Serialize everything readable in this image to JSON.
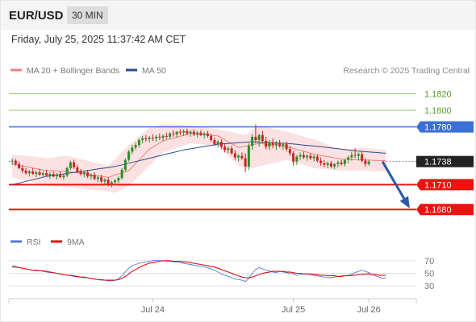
{
  "header": {
    "pair": "EUR/USD",
    "timeframe": "30 MIN"
  },
  "datetime": "Friday, July 25, 2025 11:37:42 AM CET",
  "legend": {
    "ma20": {
      "label": "MA 20 + Bollinger Bands",
      "color": "#f08080"
    },
    "ma50": {
      "label": "MA 50",
      "color": "#2a4d8f"
    },
    "copyright": "Research © 2025 Trading Central"
  },
  "rsi_legend": {
    "rsi": {
      "label": "RSI",
      "color": "#5577dd"
    },
    "ma9": {
      "label": "9MA",
      "color": "#dd1111"
    }
  },
  "colors": {
    "up": "#2e8b2e",
    "down": "#cc2222",
    "band_fill": "#fadcdc",
    "arrow": "#2a5aa8"
  },
  "chart_data": [
    {
      "type": "candlestick",
      "ylim": [
        1.165,
        1.184
      ],
      "x_count": 110,
      "xticks": [
        {
          "i": 41,
          "label": "Jul 24"
        },
        {
          "i": 82,
          "label": "Jul 25"
        },
        {
          "i": 104,
          "label": "Jul 26"
        }
      ],
      "candles": [
        [
          1.1738,
          1.1742,
          1.1734,
          1.1739
        ],
        [
          1.1739,
          1.1741,
          1.1733,
          1.1735
        ],
        [
          1.1735,
          1.1738,
          1.1729,
          1.173
        ],
        [
          1.173,
          1.1734,
          1.1724,
          1.1727
        ],
        [
          1.1727,
          1.173,
          1.1722,
          1.1724
        ],
        [
          1.1724,
          1.1728,
          1.172,
          1.1726
        ],
        [
          1.1726,
          1.173,
          1.1722,
          1.1723
        ],
        [
          1.1723,
          1.1727,
          1.1719,
          1.1725
        ],
        [
          1.1725,
          1.1729,
          1.1721,
          1.1722
        ],
        [
          1.1722,
          1.1726,
          1.1719,
          1.1724
        ],
        [
          1.1724,
          1.1728,
          1.172,
          1.1721
        ],
        [
          1.1721,
          1.1725,
          1.1717,
          1.1723
        ],
        [
          1.1723,
          1.1726,
          1.1719,
          1.172
        ],
        [
          1.172,
          1.1724,
          1.1716,
          1.1722
        ],
        [
          1.1722,
          1.1726,
          1.1718,
          1.1719
        ],
        [
          1.1719,
          1.1723,
          1.1716,
          1.1721
        ],
        [
          1.1721,
          1.1732,
          1.1719,
          1.173
        ],
        [
          1.173,
          1.1739,
          1.1728,
          1.1737
        ],
        [
          1.1737,
          1.174,
          1.1729,
          1.1731
        ],
        [
          1.1731,
          1.1734,
          1.1724,
          1.1726
        ],
        [
          1.1726,
          1.1729,
          1.1721,
          1.1723
        ],
        [
          1.1723,
          1.1727,
          1.1719,
          1.1725
        ],
        [
          1.1725,
          1.1728,
          1.1718,
          1.172
        ],
        [
          1.172,
          1.1724,
          1.1716,
          1.1722
        ],
        [
          1.1722,
          1.1725,
          1.1715,
          1.1717
        ],
        [
          1.1717,
          1.1721,
          1.1713,
          1.1719
        ],
        [
          1.1719,
          1.1722,
          1.1712,
          1.1714
        ],
        [
          1.1714,
          1.1718,
          1.171,
          1.1716
        ],
        [
          1.1716,
          1.1719,
          1.1708,
          1.1711
        ],
        [
          1.1711,
          1.1715,
          1.1707,
          1.1713
        ],
        [
          1.1713,
          1.1717,
          1.1709,
          1.1715
        ],
        [
          1.1715,
          1.172,
          1.1712,
          1.1718
        ],
        [
          1.1718,
          1.173,
          1.1716,
          1.1728
        ],
        [
          1.1728,
          1.1742,
          1.1726,
          1.174
        ],
        [
          1.174,
          1.1752,
          1.1738,
          1.175
        ],
        [
          1.175,
          1.1758,
          1.1747,
          1.1755
        ],
        [
          1.1755,
          1.1761,
          1.1752,
          1.1758
        ],
        [
          1.1758,
          1.1766,
          1.1755,
          1.1764
        ],
        [
          1.1764,
          1.1769,
          1.176,
          1.1766
        ],
        [
          1.1766,
          1.177,
          1.1762,
          1.1765
        ],
        [
          1.1765,
          1.1769,
          1.1761,
          1.1767
        ],
        [
          1.1767,
          1.1771,
          1.1763,
          1.1766
        ],
        [
          1.1766,
          1.177,
          1.1762,
          1.1768
        ],
        [
          1.1768,
          1.1772,
          1.1764,
          1.1767
        ],
        [
          1.1767,
          1.1771,
          1.1763,
          1.1769
        ],
        [
          1.1769,
          1.1773,
          1.1765,
          1.1768
        ],
        [
          1.1768,
          1.1774,
          1.1765,
          1.1772
        ],
        [
          1.1772,
          1.1776,
          1.1768,
          1.1771
        ],
        [
          1.1771,
          1.1775,
          1.1767,
          1.1774
        ],
        [
          1.1774,
          1.1777,
          1.177,
          1.1773
        ],
        [
          1.1773,
          1.1777,
          1.1769,
          1.1775
        ],
        [
          1.1775,
          1.1778,
          1.177,
          1.1772
        ],
        [
          1.1772,
          1.1776,
          1.1768,
          1.1774
        ],
        [
          1.1774,
          1.1777,
          1.1769,
          1.1771
        ],
        [
          1.1771,
          1.1775,
          1.1767,
          1.1773
        ],
        [
          1.1773,
          1.1776,
          1.1769,
          1.177
        ],
        [
          1.177,
          1.1774,
          1.1766,
          1.1772
        ],
        [
          1.1772,
          1.1775,
          1.1767,
          1.1769
        ],
        [
          1.1769,
          1.1772,
          1.1762,
          1.1764
        ],
        [
          1.1764,
          1.1767,
          1.1757,
          1.1759
        ],
        [
          1.1759,
          1.1764,
          1.1755,
          1.1762
        ],
        [
          1.1762,
          1.1765,
          1.1753,
          1.1756
        ],
        [
          1.1756,
          1.1759,
          1.1749,
          1.1752
        ],
        [
          1.1752,
          1.1756,
          1.1748,
          1.1754
        ],
        [
          1.1754,
          1.1757,
          1.1746,
          1.1748
        ],
        [
          1.1748,
          1.1752,
          1.174,
          1.1743
        ],
        [
          1.1743,
          1.1747,
          1.1738,
          1.1745
        ],
        [
          1.1745,
          1.1749,
          1.174,
          1.1742
        ],
        [
          1.1742,
          1.1748,
          1.1725,
          1.1732
        ],
        [
          1.1732,
          1.176,
          1.1728,
          1.1757
        ],
        [
          1.1757,
          1.1771,
          1.1752,
          1.1768
        ],
        [
          1.1768,
          1.1783,
          1.176,
          1.1764
        ],
        [
          1.1764,
          1.1772,
          1.1756,
          1.177
        ],
        [
          1.177,
          1.1775,
          1.176,
          1.1763
        ],
        [
          1.1763,
          1.1768,
          1.1753,
          1.1756
        ],
        [
          1.1756,
          1.1764,
          1.1752,
          1.1761
        ],
        [
          1.1761,
          1.1766,
          1.1754,
          1.1758
        ],
        [
          1.1758,
          1.1763,
          1.1752,
          1.176
        ],
        [
          1.176,
          1.1764,
          1.1755,
          1.1757
        ],
        [
          1.1757,
          1.1761,
          1.1752,
          1.1759
        ],
        [
          1.1759,
          1.1762,
          1.175,
          1.1753
        ],
        [
          1.1753,
          1.1757,
          1.1745,
          1.1748
        ],
        [
          1.1748,
          1.1751,
          1.1733,
          1.1738
        ],
        [
          1.1738,
          1.1746,
          1.1734,
          1.1744
        ],
        [
          1.1744,
          1.1749,
          1.174,
          1.1746
        ],
        [
          1.1746,
          1.175,
          1.1741,
          1.1743
        ],
        [
          1.1743,
          1.1747,
          1.1739,
          1.1745
        ],
        [
          1.1745,
          1.1748,
          1.174,
          1.1742
        ],
        [
          1.1742,
          1.1746,
          1.1738,
          1.1744
        ],
        [
          1.1744,
          1.1747,
          1.1737,
          1.1739
        ],
        [
          1.1739,
          1.1743,
          1.1733,
          1.1736
        ],
        [
          1.1736,
          1.174,
          1.1731,
          1.1734
        ],
        [
          1.1734,
          1.1738,
          1.173,
          1.1736
        ],
        [
          1.1736,
          1.1739,
          1.173,
          1.1732
        ],
        [
          1.1732,
          1.1736,
          1.1729,
          1.1735
        ],
        [
          1.1735,
          1.1739,
          1.1731,
          1.1737
        ],
        [
          1.1737,
          1.174,
          1.1733,
          1.1735
        ],
        [
          1.1735,
          1.1741,
          1.1732,
          1.174
        ],
        [
          1.174,
          1.1745,
          1.1736,
          1.1743
        ],
        [
          1.1743,
          1.175,
          1.1739,
          1.1746
        ],
        [
          1.1746,
          1.1754,
          1.1742,
          1.1745
        ],
        [
          1.1745,
          1.1749,
          1.1739,
          1.1747
        ],
        [
          1.1747,
          1.175,
          1.1737,
          1.1739
        ],
        [
          1.1739,
          1.1742,
          1.1732,
          1.1735
        ],
        [
          1.1735,
          1.174,
          1.1733,
          1.1738
        ]
      ],
      "bb_upper_anchors": [
        [
          0,
          1.1747
        ],
        [
          10,
          1.1742
        ],
        [
          16,
          1.1745
        ],
        [
          28,
          1.1733
        ],
        [
          34,
          1.1758
        ],
        [
          40,
          1.1779
        ],
        [
          44,
          1.1783
        ],
        [
          52,
          1.1782
        ],
        [
          60,
          1.1777
        ],
        [
          68,
          1.177
        ],
        [
          72,
          1.1782
        ],
        [
          80,
          1.1774
        ],
        [
          88,
          1.1765
        ],
        [
          96,
          1.1752
        ],
        [
          102,
          1.1755
        ],
        [
          109,
          1.1752
        ]
      ],
      "bb_lower_anchors": [
        [
          0,
          1.1719
        ],
        [
          10,
          1.1709
        ],
        [
          16,
          1.1707
        ],
        [
          28,
          1.1702
        ],
        [
          30,
          1.17
        ],
        [
          34,
          1.1708
        ],
        [
          40,
          1.1733
        ],
        [
          44,
          1.1749
        ],
        [
          52,
          1.176
        ],
        [
          60,
          1.1757
        ],
        [
          66,
          1.1733
        ],
        [
          70,
          1.173
        ],
        [
          80,
          1.174
        ],
        [
          88,
          1.173
        ],
        [
          96,
          1.1727
        ],
        [
          102,
          1.1727
        ],
        [
          109,
          1.1726
        ]
      ],
      "ma20_anchors": [
        [
          0,
          1.1735
        ],
        [
          10,
          1.1727
        ],
        [
          16,
          1.1726
        ],
        [
          28,
          1.1719
        ],
        [
          34,
          1.1727
        ],
        [
          40,
          1.1753
        ],
        [
          44,
          1.1763
        ],
        [
          52,
          1.1772
        ],
        [
          60,
          1.1769
        ],
        [
          66,
          1.1755
        ],
        [
          72,
          1.176
        ],
        [
          80,
          1.1756
        ],
        [
          88,
          1.1747
        ],
        [
          96,
          1.1741
        ],
        [
          102,
          1.174
        ],
        [
          109,
          1.1739
        ]
      ],
      "ma50_anchors": [
        [
          0,
          1.171
        ],
        [
          10,
          1.172
        ],
        [
          20,
          1.1726
        ],
        [
          30,
          1.1732
        ],
        [
          40,
          1.1742
        ],
        [
          50,
          1.1752
        ],
        [
          60,
          1.1759
        ],
        [
          70,
          1.1762
        ],
        [
          80,
          1.176
        ],
        [
          90,
          1.1756
        ],
        [
          100,
          1.1751
        ],
        [
          109,
          1.1748
        ]
      ],
      "levels": [
        {
          "label": "1.1820",
          "value": 1.182,
          "style": "thin-green"
        },
        {
          "label": "1.1800",
          "value": 1.18,
          "style": "thin-green"
        },
        {
          "label": "1.1780",
          "value": 1.178,
          "style": "blue"
        },
        {
          "label": "1.1710",
          "value": 1.171,
          "style": "red"
        },
        {
          "label": "1.1680",
          "value": 1.168,
          "style": "red"
        }
      ],
      "current_price": {
        "label": "1.1738",
        "value": 1.1738
      },
      "forecast_arrow": {
        "from_i": 108,
        "from_value": 1.1738,
        "to_i": 117,
        "to_value": 1.168
      }
    },
    {
      "type": "line",
      "title": "RSI",
      "ylim": [
        20,
        80
      ],
      "yticks": [
        {
          "value": 70,
          "label": "70"
        },
        {
          "value": 50,
          "label": "50"
        },
        {
          "value": 30,
          "label": "30"
        }
      ],
      "series": [
        {
          "name": "RSI",
          "values": [
            62,
            61,
            59,
            58,
            57,
            56,
            55,
            54,
            54,
            53,
            52,
            51,
            51,
            50,
            49,
            48,
            47,
            46,
            45,
            44,
            44,
            43,
            43,
            42,
            41,
            40,
            39,
            39,
            38,
            38,
            39,
            41,
            46,
            52,
            58,
            62,
            64,
            66,
            67,
            68,
            69,
            70,
            71,
            70,
            70,
            69,
            69,
            68,
            68,
            67,
            66,
            65,
            64,
            63,
            62,
            61,
            60,
            59,
            57,
            55,
            52,
            49,
            47,
            45,
            43,
            41,
            40,
            39,
            37,
            42,
            50,
            56,
            59,
            57,
            55,
            54,
            52,
            51,
            53,
            52,
            51,
            50,
            49,
            47,
            48,
            49,
            49,
            48,
            47,
            46,
            45,
            44,
            43,
            43,
            44,
            45,
            46,
            46,
            47,
            48,
            51,
            53,
            55,
            53,
            51,
            48,
            46,
            44,
            42,
            43
          ]
        },
        {
          "name": "9MA",
          "values": [
            60,
            60,
            59,
            58,
            57,
            56,
            55,
            55,
            54,
            54,
            53,
            52,
            51,
            50,
            49,
            48,
            47,
            47,
            46,
            45,
            44,
            44,
            43,
            42,
            41,
            40,
            40,
            39,
            39,
            39,
            39,
            40,
            42,
            45,
            49,
            53,
            56,
            59,
            62,
            64,
            66,
            67,
            68,
            69,
            70,
            70,
            70,
            69,
            69,
            69,
            68,
            68,
            67,
            66,
            65,
            64,
            63,
            62,
            61,
            60,
            58,
            56,
            54,
            52,
            50,
            48,
            46,
            44,
            43,
            43,
            44,
            46,
            48,
            50,
            51,
            52,
            53,
            53,
            53,
            53,
            52,
            52,
            51,
            50,
            50,
            49,
            49,
            49,
            48,
            48,
            47,
            47,
            46,
            46,
            46,
            45,
            45,
            46,
            46,
            47,
            47,
            48,
            48,
            49,
            49,
            48,
            48,
            47,
            47,
            47
          ]
        }
      ]
    }
  ]
}
